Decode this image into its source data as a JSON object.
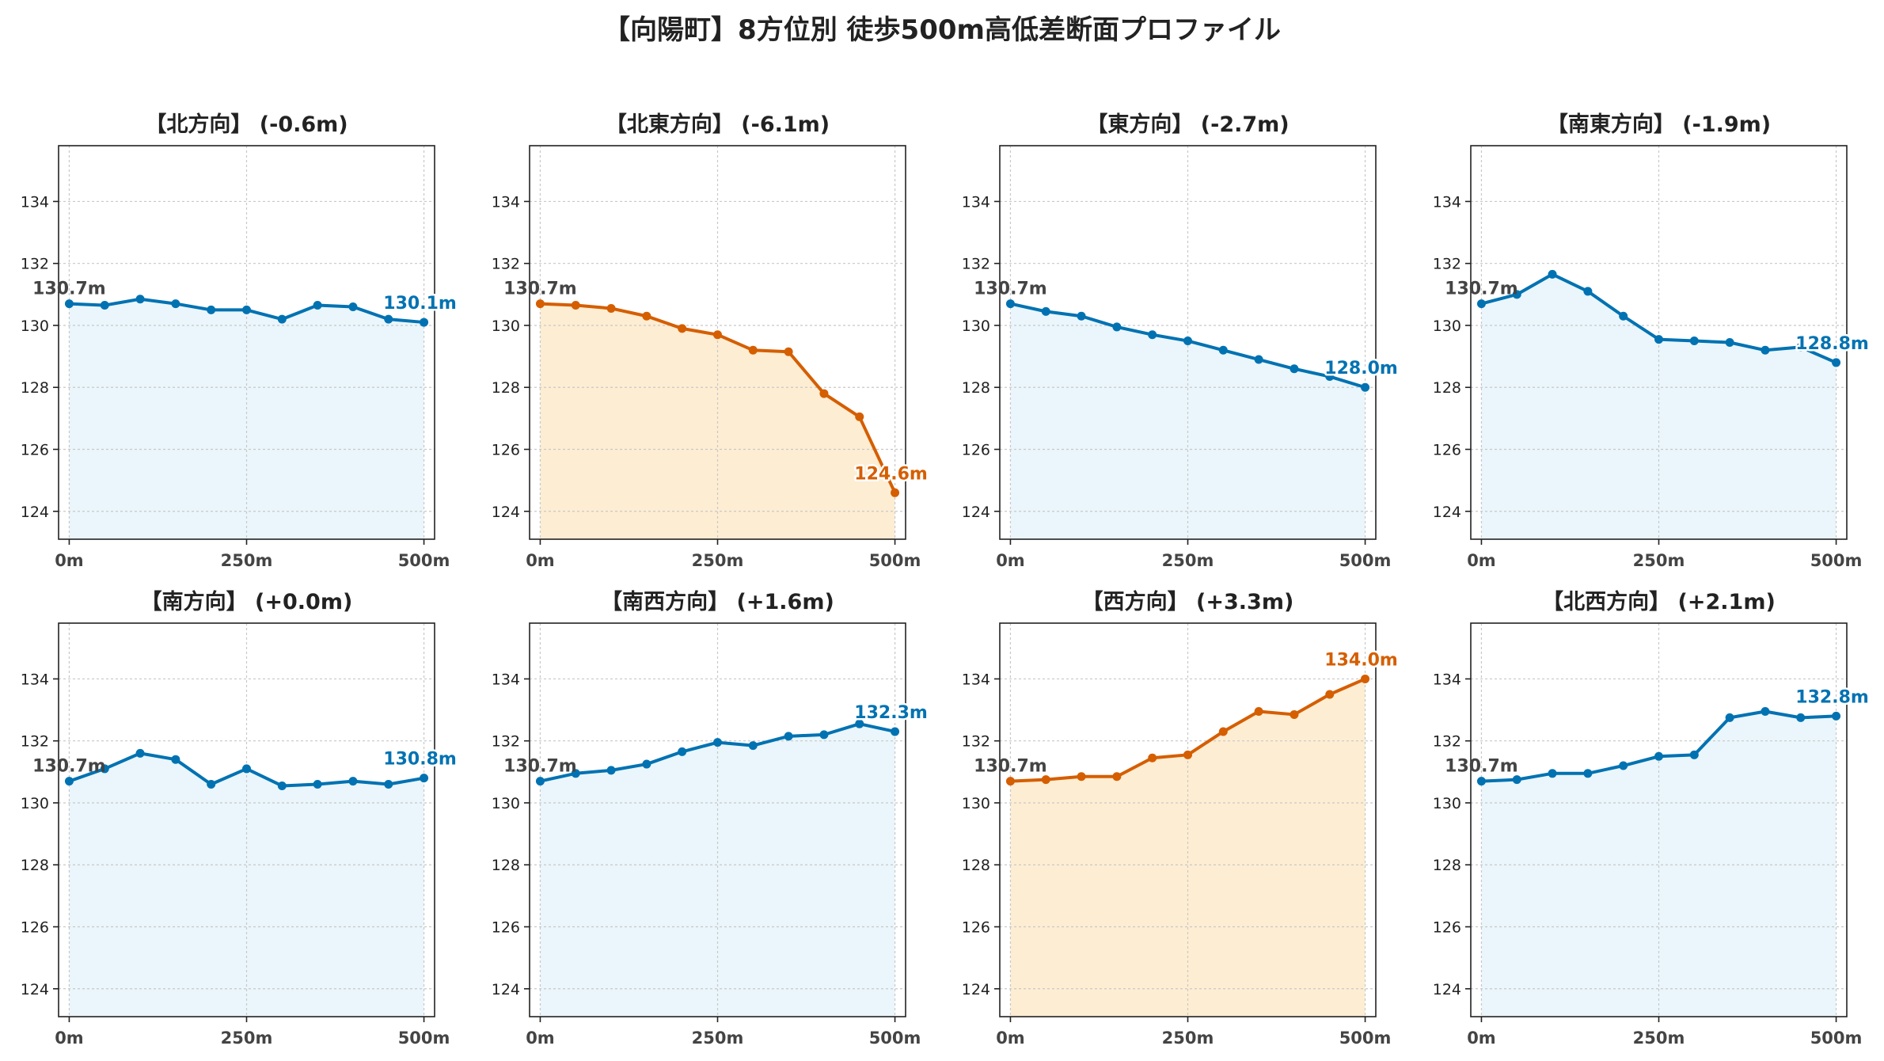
{
  "title": "【向陽町】8方位別 徒歩500m高低差断面プロファイル",
  "colors": {
    "normal_line": "#0072B2",
    "normal_fill": "#EAF6FB",
    "highlight_line": "#D55E00",
    "highlight_fill": "#FDEDD3",
    "grid": "#c8c8c8",
    "start_label": "#444444"
  },
  "chart_data": [
    {
      "type": "area",
      "title": "【北方向】 (-0.6m)",
      "highlight": false,
      "x": [
        0,
        50,
        100,
        150,
        200,
        250,
        300,
        350,
        400,
        450,
        500
      ],
      "y": [
        130.7,
        130.65,
        130.85,
        130.7,
        130.5,
        130.5,
        130.2,
        130.65,
        130.6,
        130.2,
        130.1
      ],
      "xticks": [
        "0m",
        "250m",
        "500m"
      ],
      "yticks": [
        "124",
        "126",
        "128",
        "130",
        "132",
        "134"
      ],
      "xlim": [
        -15,
        515
      ],
      "ylim": [
        123.1,
        135.8
      ],
      "start_label": "130.7m",
      "end_label": "130.1m",
      "grid": true
    },
    {
      "type": "area",
      "title": "【北東方向】 (-6.1m)",
      "highlight": true,
      "x": [
        0,
        50,
        100,
        150,
        200,
        250,
        300,
        350,
        400,
        450,
        500
      ],
      "y": [
        130.7,
        130.65,
        130.55,
        130.3,
        129.9,
        129.7,
        129.2,
        129.15,
        127.8,
        127.05,
        124.6
      ],
      "xticks": [
        "0m",
        "250m",
        "500m"
      ],
      "yticks": [
        "124",
        "126",
        "128",
        "130",
        "132",
        "134"
      ],
      "xlim": [
        -15,
        515
      ],
      "ylim": [
        123.1,
        135.8
      ],
      "start_label": "130.7m",
      "end_label": "124.6m",
      "grid": true
    },
    {
      "type": "area",
      "title": "【東方向】 (-2.7m)",
      "highlight": false,
      "x": [
        0,
        50,
        100,
        150,
        200,
        250,
        300,
        350,
        400,
        450,
        500
      ],
      "y": [
        130.7,
        130.45,
        130.3,
        129.95,
        129.7,
        129.5,
        129.2,
        128.9,
        128.6,
        128.35,
        128.0
      ],
      "xticks": [
        "0m",
        "250m",
        "500m"
      ],
      "yticks": [
        "124",
        "126",
        "128",
        "130",
        "132",
        "134"
      ],
      "xlim": [
        -15,
        515
      ],
      "ylim": [
        123.1,
        135.8
      ],
      "start_label": "130.7m",
      "end_label": "128.0m",
      "grid": true
    },
    {
      "type": "area",
      "title": "【南東方向】 (-1.9m)",
      "highlight": false,
      "x": [
        0,
        50,
        100,
        150,
        200,
        250,
        300,
        350,
        400,
        450,
        500
      ],
      "y": [
        130.7,
        131.0,
        131.65,
        131.1,
        130.3,
        129.55,
        129.5,
        129.45,
        129.2,
        129.3,
        128.8
      ],
      "xticks": [
        "0m",
        "250m",
        "500m"
      ],
      "yticks": [
        "124",
        "126",
        "128",
        "130",
        "132",
        "134"
      ],
      "xlim": [
        -15,
        515
      ],
      "ylim": [
        123.1,
        135.8
      ],
      "start_label": "130.7m",
      "end_label": "128.8m",
      "grid": true
    },
    {
      "type": "area",
      "title": "【南方向】 (+0.0m)",
      "highlight": false,
      "x": [
        0,
        50,
        100,
        150,
        200,
        250,
        300,
        350,
        400,
        450,
        500
      ],
      "y": [
        130.7,
        131.1,
        131.6,
        131.4,
        130.6,
        131.1,
        130.55,
        130.6,
        130.7,
        130.6,
        130.8
      ],
      "xticks": [
        "0m",
        "250m",
        "500m"
      ],
      "yticks": [
        "124",
        "126",
        "128",
        "130",
        "132",
        "134"
      ],
      "xlim": [
        -15,
        515
      ],
      "ylim": [
        123.1,
        135.8
      ],
      "start_label": "130.7m",
      "end_label": "130.8m",
      "grid": true
    },
    {
      "type": "area",
      "title": "【南西方向】 (+1.6m)",
      "highlight": false,
      "x": [
        0,
        50,
        100,
        150,
        200,
        250,
        300,
        350,
        400,
        450,
        500
      ],
      "y": [
        130.7,
        130.95,
        131.05,
        131.25,
        131.65,
        131.95,
        131.85,
        132.15,
        132.2,
        132.55,
        132.3
      ],
      "xticks": [
        "0m",
        "250m",
        "500m"
      ],
      "yticks": [
        "124",
        "126",
        "128",
        "130",
        "132",
        "134"
      ],
      "xlim": [
        -15,
        515
      ],
      "ylim": [
        123.1,
        135.8
      ],
      "start_label": "130.7m",
      "end_label": "132.3m",
      "grid": true
    },
    {
      "type": "area",
      "title": "【西方向】 (+3.3m)",
      "highlight": true,
      "x": [
        0,
        50,
        100,
        150,
        200,
        250,
        300,
        350,
        400,
        450,
        500
      ],
      "y": [
        130.7,
        130.75,
        130.85,
        130.85,
        131.45,
        131.55,
        132.3,
        132.95,
        132.85,
        133.5,
        134.0
      ],
      "xticks": [
        "0m",
        "250m",
        "500m"
      ],
      "yticks": [
        "124",
        "126",
        "128",
        "130",
        "132",
        "134"
      ],
      "xlim": [
        -15,
        515
      ],
      "ylim": [
        123.1,
        135.8
      ],
      "start_label": "130.7m",
      "end_label": "134.0m",
      "grid": true
    },
    {
      "type": "area",
      "title": "【北西方向】 (+2.1m)",
      "highlight": false,
      "x": [
        0,
        50,
        100,
        150,
        200,
        250,
        300,
        350,
        400,
        450,
        500
      ],
      "y": [
        130.7,
        130.75,
        130.95,
        130.95,
        131.2,
        131.5,
        131.55,
        132.75,
        132.95,
        132.75,
        132.8
      ],
      "xticks": [
        "0m",
        "250m",
        "500m"
      ],
      "yticks": [
        "124",
        "126",
        "128",
        "130",
        "132",
        "134"
      ],
      "xlim": [
        -15,
        515
      ],
      "ylim": [
        123.1,
        135.8
      ],
      "start_label": "130.7m",
      "end_label": "132.8m",
      "grid": true
    }
  ]
}
